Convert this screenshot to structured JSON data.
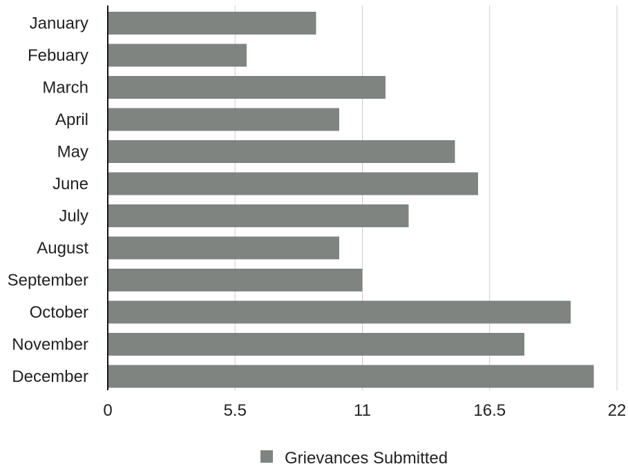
{
  "chart_data": {
    "type": "bar",
    "orientation": "horizontal",
    "categories": [
      "January",
      "Febuary",
      "March",
      "April",
      "May",
      "June",
      "July",
      "August",
      "September",
      "October",
      "November",
      "December"
    ],
    "series": [
      {
        "name": "Grievances Submitted",
        "values": [
          9,
          6,
          12,
          10,
          15,
          16,
          13,
          10,
          11,
          20,
          18,
          21
        ],
        "color": "#7f8480"
      }
    ],
    "xlim": [
      0,
      22
    ],
    "xticks": [
      "0",
      "5.5",
      "11",
      "16.5",
      "22"
    ],
    "xtick_values": [
      0,
      5.5,
      11,
      16.5,
      22
    ],
    "grid": "vertical",
    "legend": {
      "placement": "bottom-center",
      "label": "Grievances Submitted"
    },
    "title": "",
    "xlabel": "",
    "ylabel": ""
  }
}
